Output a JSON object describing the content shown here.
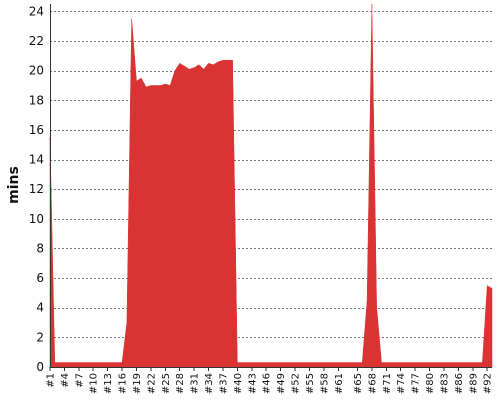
{
  "chart_data": {
    "type": "area",
    "title": "",
    "xlabel": "",
    "ylabel": "mins",
    "ylim": [
      0,
      24.5
    ],
    "y_ticks": [
      0,
      2,
      4,
      6,
      8,
      10,
      12,
      14,
      16,
      18,
      20,
      22,
      24
    ],
    "grid": true,
    "x_tick_labels": [
      "#1",
      "#4",
      "#7",
      "#10",
      "#13",
      "#16",
      "#19",
      "#22",
      "#25",
      "#28",
      "#31",
      "#34",
      "#37",
      "#40",
      "#43",
      "#46",
      "#49",
      "#52",
      "#55",
      "#58",
      "#61",
      "#65",
      "#68",
      "#71",
      "#74",
      "#77",
      "#80",
      "#83",
      "#86",
      "#89",
      "#92"
    ],
    "fill_color": "#d93333",
    "series": [
      {
        "name": "",
        "x": [
          1,
          2,
          3,
          4,
          5,
          6,
          7,
          8,
          9,
          10,
          11,
          12,
          13,
          14,
          15,
          16,
          17,
          18,
          19,
          20,
          21,
          22,
          23,
          24,
          25,
          26,
          27,
          28,
          29,
          30,
          31,
          32,
          33,
          34,
          35,
          36,
          37,
          38,
          39,
          40,
          41,
          42,
          43,
          44,
          45,
          46,
          47,
          48,
          49,
          50,
          51,
          52,
          53,
          54,
          55,
          56,
          57,
          58,
          59,
          60,
          61,
          62,
          63,
          64,
          65,
          66,
          67,
          68,
          69,
          70,
          71,
          72,
          73,
          74,
          75,
          76,
          77,
          78,
          79,
          80,
          81,
          82,
          83,
          84,
          85,
          86,
          87,
          88,
          89,
          90,
          91,
          92,
          93
        ],
        "values": [
          15.5,
          0.3,
          0.3,
          0.3,
          0.3,
          0.3,
          0.3,
          0.3,
          0.3,
          0.3,
          0.3,
          0.3,
          0.3,
          0.3,
          0.3,
          0.3,
          3.0,
          23.5,
          19.3,
          19.5,
          18.9,
          19.0,
          19.0,
          19.0,
          19.1,
          19.0,
          20.0,
          20.5,
          20.3,
          20.1,
          20.2,
          20.4,
          20.1,
          20.5,
          20.4,
          20.6,
          20.7,
          20.7,
          20.7,
          0.3,
          0.3,
          0.3,
          0.3,
          0.3,
          0.3,
          0.3,
          0.3,
          0.3,
          0.3,
          0.3,
          0.3,
          0.3,
          0.3,
          0.3,
          0.3,
          0.3,
          0.3,
          0.3,
          0.3,
          0.3,
          0.3,
          0.3,
          0.3,
          0.3,
          0.3,
          0.3,
          4.5,
          26.0,
          4.0,
          0.3,
          0.3,
          0.3,
          0.3,
          0.3,
          0.3,
          0.3,
          0.3,
          0.3,
          0.3,
          0.3,
          0.3,
          0.3,
          0.3,
          0.3,
          0.3,
          0.3,
          0.3,
          0.3,
          0.3,
          0.3,
          0.3,
          5.5,
          5.3
        ]
      }
    ]
  }
}
